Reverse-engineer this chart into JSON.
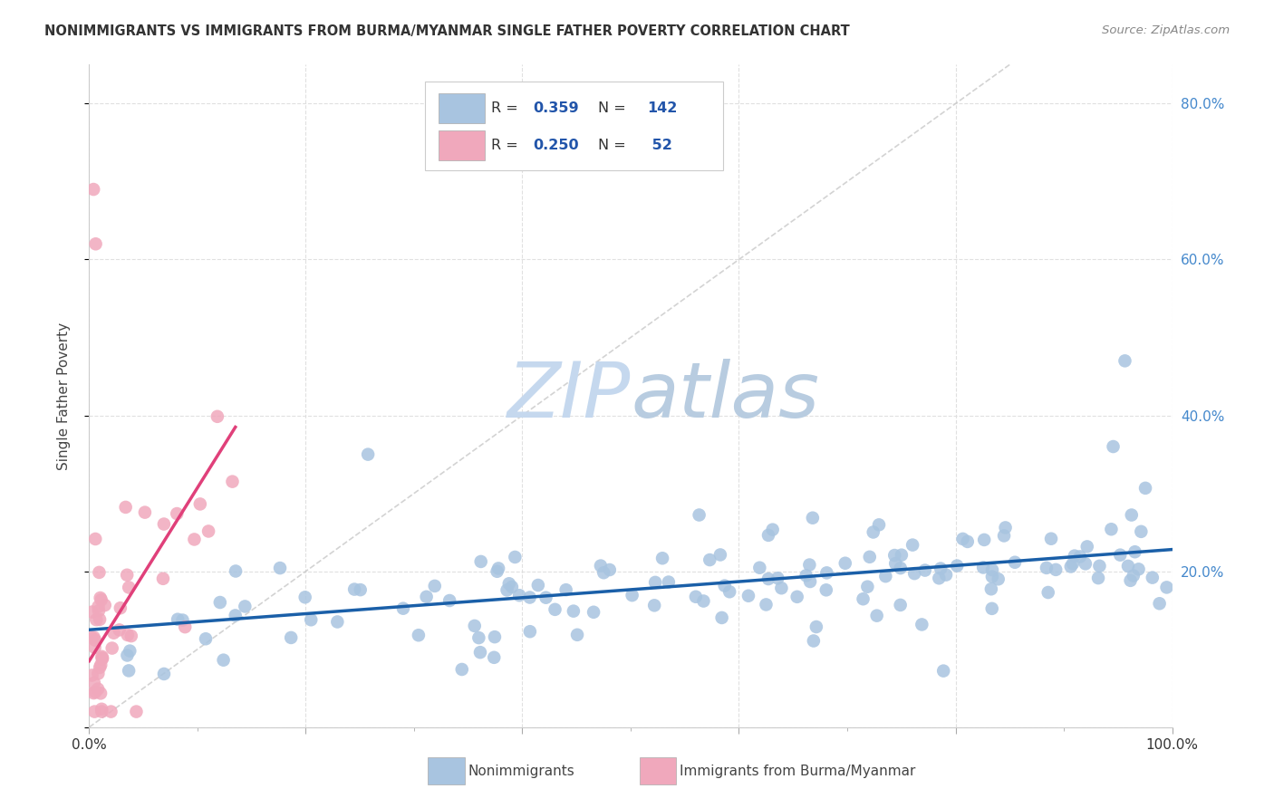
{
  "title": "NONIMMIGRANTS VS IMMIGRANTS FROM BURMA/MYANMAR SINGLE FATHER POVERTY CORRELATION CHART",
  "source": "Source: ZipAtlas.com",
  "ylabel": "Single Father Poverty",
  "xlim": [
    0.0,
    1.0
  ],
  "ylim": [
    0.0,
    0.85
  ],
  "nonimm_color": "#a8c4e0",
  "immig_color": "#f0a8bc",
  "nonimm_line_color": "#1a5fa8",
  "immig_line_color": "#e0407a",
  "diag_line_color": "#c8c8c8",
  "watermark_zip_color": "#c8d8ec",
  "watermark_atlas_color": "#b8cce0",
  "right_axis_color": "#4488cc",
  "background_color": "#ffffff",
  "grid_color": "#dddddd",
  "nonimm_line_x": [
    0.0,
    1.0
  ],
  "nonimm_line_y": [
    0.125,
    0.228
  ],
  "immig_line_x": [
    0.0,
    0.135
  ],
  "immig_line_y": [
    0.085,
    0.385
  ],
  "diag_line_x": [
    0.0,
    0.85
  ],
  "diag_line_y": [
    0.0,
    0.85
  ]
}
